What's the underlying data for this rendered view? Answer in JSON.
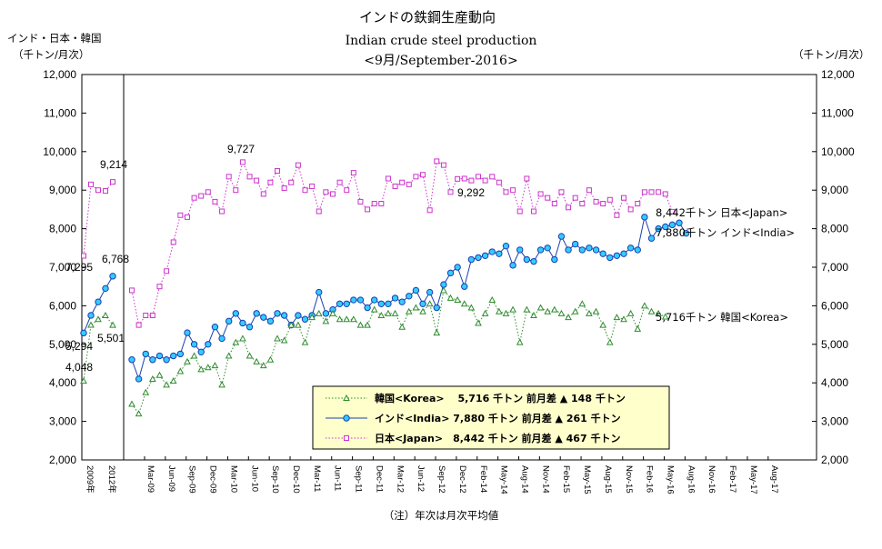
{
  "chart_data": {
    "type": "line",
    "title": "インドの鉄鋼生産動向",
    "subtitle_en": "Indian crude steel production",
    "subtitle_date": "<9月/September-2016>",
    "left_axis_label_line1": "インド・日本・韓国",
    "left_axis_label_line2": "（千トン/月次）",
    "right_axis_label": "（千トン/月次）",
    "footnote": "（注）年次は月次平均値",
    "ylim": [
      2000,
      12000
    ],
    "y_ticks": [
      "2,000",
      "3,000",
      "4,000",
      "5,000",
      "6,000",
      "7,000",
      "8,000",
      "9,000",
      "10,000",
      "11,000",
      "12,000"
    ],
    "x_annual_labels": [
      "2009年",
      "2012年"
    ],
    "x_monthly_labels": [
      "Mar-09",
      "Jun-09",
      "Sep-09",
      "Dec-09",
      "Mar-10",
      "Jun-10",
      "Sep-10",
      "Dec-10",
      "Mar-11",
      "Jun-11",
      "Sep-11",
      "Dec-11",
      "Mar-12",
      "Jun-12",
      "Sep-12",
      "Dec-12",
      "Feb-14",
      "May-14",
      "Aug-14",
      "Nov-14",
      "Feb-15",
      "May-15",
      "Aug-15",
      "Nov-15",
      "Feb-16",
      "May-16",
      "Aug-16",
      "Nov-16",
      "Feb-17",
      "May-17",
      "Aug-17"
    ],
    "series": [
      {
        "name": "日本<Japan>",
        "color": "#cc33cc",
        "marker": "square",
        "annual": [
          7295,
          9150,
          9000,
          8980,
          9214
        ],
        "monthly": [
          6400,
          5500,
          5750,
          5750,
          6500,
          6900,
          7650,
          8350,
          8300,
          8800,
          8850,
          8950,
          8700,
          8450,
          9350,
          9000,
          9727,
          9350,
          9250,
          8900,
          9200,
          9500,
          9050,
          9200,
          9650,
          9000,
          9100,
          8450,
          8950,
          8900,
          9200,
          9000,
          9450,
          8700,
          8500,
          8650,
          8650,
          9300,
          9100,
          9200,
          9150,
          9350,
          9400,
          8480,
          9750,
          9650,
          8950,
          9292,
          9300,
          9250,
          9350,
          9250,
          9350,
          9200,
          8950,
          9000,
          8450,
          9300,
          8450,
          8900,
          8800,
          8650,
          8950,
          8550,
          8800,
          8650,
          9000,
          8700,
          8650,
          8750,
          8350,
          8800,
          8500,
          8650,
          8950,
          8950,
          8950,
          8900,
          8442
        ]
      },
      {
        "name": "インド<India>",
        "color": "#1a3fb0",
        "marker": "circle",
        "annual": [
          5294,
          5750,
          6100,
          6450,
          6768
        ],
        "monthly": [
          4600,
          4100,
          4750,
          4600,
          4700,
          4600,
          4700,
          4750,
          5300,
          5000,
          4800,
          5000,
          5450,
          5150,
          5600,
          5800,
          5550,
          5450,
          5800,
          5700,
          5600,
          5800,
          5750,
          5500,
          5750,
          5650,
          5750,
          6350,
          5800,
          5900,
          6050,
          6050,
          6150,
          6150,
          5950,
          6150,
          6050,
          6050,
          6200,
          6100,
          6250,
          6400,
          6050,
          6350,
          5950,
          6550,
          6850,
          7000,
          6500,
          7200,
          7250,
          7300,
          7400,
          7350,
          7550,
          7050,
          7450,
          7200,
          7150,
          7450,
          7500,
          7200,
          7800,
          7450,
          7600,
          7450,
          7500,
          7450,
          7350,
          7250,
          7300,
          7350,
          7500,
          7450,
          8300,
          7750,
          8000,
          8050,
          8100,
          8150,
          7880
        ]
      },
      {
        "name": "韓国<Korea>",
        "color": "#2e8b2e",
        "marker": "triangle",
        "annual": [
          4048,
          5501,
          5650,
          5750,
          5500
        ],
        "monthly": [
          3450,
          3200,
          3750,
          4100,
          4200,
          3950,
          4050,
          4300,
          4550,
          4700,
          4350,
          4400,
          4450,
          3950,
          4700,
          5050,
          5150,
          4700,
          4550,
          4450,
          4600,
          5150,
          5100,
          5500,
          5500,
          5050,
          5700,
          5800,
          5600,
          5800,
          5650,
          5650,
          5650,
          5500,
          5500,
          5900,
          5750,
          5800,
          5800,
          5450,
          5850,
          5950,
          5850,
          6050,
          5300,
          6400,
          6200,
          6150,
          6050,
          5950,
          5550,
          5800,
          6150,
          5850,
          5800,
          5900,
          5050,
          5900,
          5750,
          5950,
          5850,
          5900,
          5800,
          5700,
          5850,
          6050,
          5800,
          5850,
          5500,
          5050,
          5700,
          5650,
          5800,
          5400,
          6000,
          5850,
          5800,
          5716
        ]
      }
    ],
    "annotations": {
      "japan_annual_peak": "9,214",
      "japan_start": "7,295",
      "japan_monthly_peak": "9,727",
      "japan_2014": "9,292",
      "india_annual_end": "6,768",
      "india_start": "5,294",
      "korea_start": "4,048",
      "korea_annual": "5,501",
      "japan_end": "8,442千トン  日本<Japan>",
      "india_end": "7,880千トン  インド<India>",
      "korea_end": "5,716千トン  韓国<Korea>"
    },
    "legend": {
      "placement": "bottom-center",
      "rows": [
        "韓国<Korea>　 5,716 千トン 前月差 ▲ 148 千トン",
        "インド<India> 7,880 千トン 前月差 ▲ 261 千トン",
        "日本<Japan>　8,442 千トン 前月差 ▲ 467 千トン"
      ],
      "background": "#ffffcc"
    },
    "grid": false
  }
}
